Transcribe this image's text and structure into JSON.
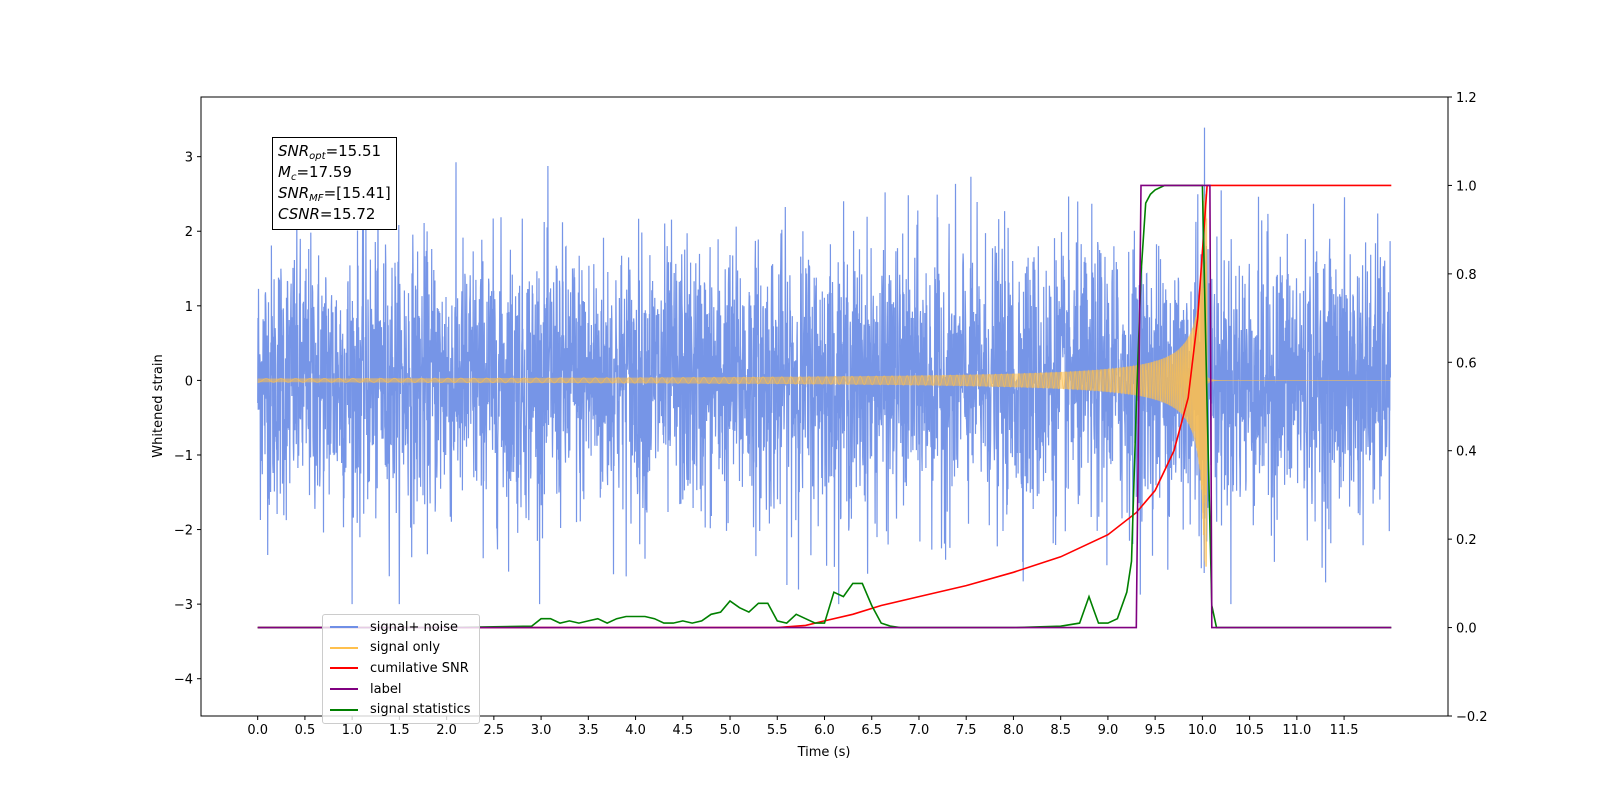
{
  "chart_data": {
    "type": "line",
    "xlabel": "Time (s)",
    "ylabel": "Whitened strain",
    "xlim": [
      -0.6,
      12.6
    ],
    "ylim": [
      -4.5,
      3.8
    ],
    "ylim_right": [
      -0.2,
      1.2
    ],
    "x_ticks": [
      "0.0",
      "0.5",
      "1.0",
      "1.5",
      "2.0",
      "2.5",
      "3.0",
      "3.5",
      "4.0",
      "4.5",
      "5.0",
      "5.5",
      "6.0",
      "6.5",
      "7.0",
      "7.5",
      "8.0",
      "8.5",
      "9.0",
      "9.5",
      "10.0",
      "10.5",
      "11.0",
      "11.5"
    ],
    "y_ticks": [
      "3",
      "2",
      "1",
      "0",
      "−1",
      "−2",
      "−3",
      "−4"
    ],
    "y_ticks_right": [
      "1.2",
      "1.0",
      "0.8",
      "0.6",
      "0.4",
      "0.2",
      "0.0",
      "−0.2"
    ],
    "annotation": {
      "snr_opt": {
        "main": "SNR",
        "sub": "opt",
        "value": "=15.51"
      },
      "mc": {
        "main": "M",
        "sub": "c",
        "value": "=17.59"
      },
      "snr_mf": {
        "main": "SNR",
        "sub": "MF",
        "value": "=[15.41]"
      },
      "csnr": {
        "main": "CSNR",
        "value": "=15.72"
      }
    },
    "legend": [
      {
        "name": "signal+ noise",
        "color": "#6f8fe6"
      },
      {
        "name": "signal only",
        "color": "#ffc04d"
      },
      {
        "name": "cumilative SNR",
        "color": "#ff0000"
      },
      {
        "name": "label",
        "color": "#800080"
      },
      {
        "name": "signal statistics",
        "color": "#008000"
      }
    ],
    "series": [
      {
        "name": "signal+ noise",
        "axis": "left",
        "color": "#6f8fe6",
        "x_range": [
          0.0,
          11.99
        ],
        "y_envelope": [
          -3.0,
          3.4
        ]
      },
      {
        "name": "signal only",
        "axis": "left",
        "color": "#ffc04d",
        "chirp_end_x": 10.05,
        "peak_amplitude": 2.5
      },
      {
        "name": "cumilative SNR",
        "axis": "right",
        "color": "#ff0000",
        "x": [
          0.0,
          5.5,
          5.8,
          6.0,
          6.3,
          6.6,
          7.0,
          7.5,
          8.0,
          8.5,
          9.0,
          9.3,
          9.5,
          9.7,
          9.85,
          9.95,
          10.0,
          10.05,
          12.0
        ],
        "y": [
          0.0,
          0.0,
          0.005,
          0.015,
          0.03,
          0.05,
          0.07,
          0.095,
          0.125,
          0.16,
          0.21,
          0.26,
          0.31,
          0.4,
          0.52,
          0.7,
          0.85,
          1.0,
          1.0
        ]
      },
      {
        "name": "label",
        "axis": "right",
        "color": "#800080",
        "x": [
          0.0,
          9.3,
          9.35,
          10.08,
          10.1,
          12.0
        ],
        "y": [
          0.0,
          0.0,
          1.0,
          1.0,
          0.0,
          0.0
        ]
      },
      {
        "name": "signal statistics",
        "axis": "right",
        "color": "#008000",
        "x": [
          0.0,
          0.1,
          1.0,
          2.0,
          2.9,
          3.0,
          3.1,
          3.2,
          3.3,
          3.4,
          3.5,
          3.6,
          3.7,
          3.8,
          3.9,
          4.0,
          4.1,
          4.2,
          4.3,
          4.4,
          4.5,
          4.6,
          4.7,
          4.8,
          4.9,
          5.0,
          5.1,
          5.2,
          5.3,
          5.4,
          5.5,
          5.6,
          5.7,
          5.8,
          5.9,
          6.0,
          6.1,
          6.2,
          6.3,
          6.4,
          6.5,
          6.6,
          6.7,
          6.8,
          7.0,
          8.0,
          8.5,
          8.7,
          8.8,
          8.85,
          8.9,
          9.0,
          9.1,
          9.2,
          9.25,
          9.3,
          9.35,
          9.4,
          9.45,
          9.5,
          9.6,
          9.7,
          9.8,
          9.9,
          10.0,
          10.05,
          10.1,
          10.15,
          12.0
        ],
        "y": [
          0.0,
          0.0,
          0.0,
          0.0,
          0.003,
          0.02,
          0.02,
          0.01,
          0.015,
          0.01,
          0.015,
          0.02,
          0.01,
          0.02,
          0.025,
          0.025,
          0.025,
          0.02,
          0.01,
          0.01,
          0.015,
          0.01,
          0.015,
          0.03,
          0.035,
          0.06,
          0.045,
          0.035,
          0.055,
          0.055,
          0.015,
          0.01,
          0.03,
          0.02,
          0.01,
          0.01,
          0.08,
          0.07,
          0.1,
          0.1,
          0.05,
          0.01,
          0.003,
          0.0,
          0.0,
          0.0,
          0.003,
          0.01,
          0.07,
          0.04,
          0.01,
          0.01,
          0.02,
          0.08,
          0.15,
          0.5,
          0.8,
          0.96,
          0.98,
          0.99,
          1.0,
          1.0,
          1.0,
          1.0,
          1.0,
          0.5,
          0.05,
          0.0,
          0.0
        ]
      }
    ]
  }
}
